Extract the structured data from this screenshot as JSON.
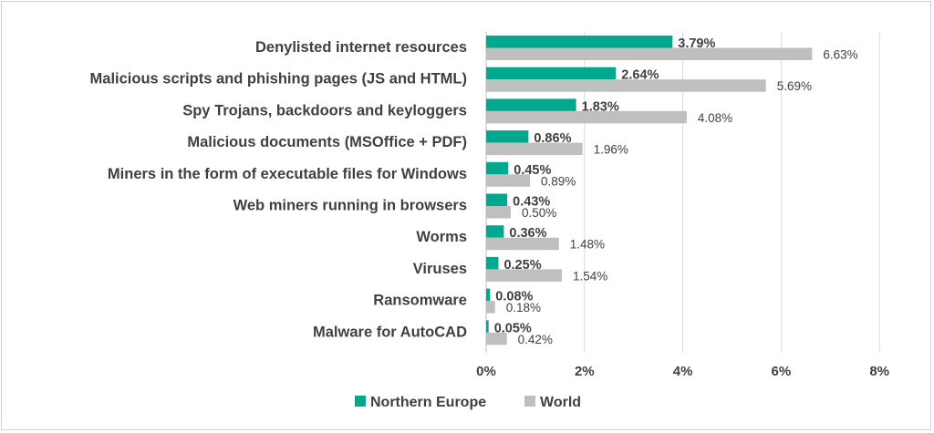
{
  "chart_data": {
    "type": "bar",
    "orientation": "horizontal",
    "categories": [
      "Denylisted internet resources",
      "Malicious scripts and phishing pages (JS and HTML)",
      "Spy Trojans, backdoors and keyloggers",
      "Malicious documents (MSOffice + PDF)",
      "Miners in the form of executable files for Windows",
      "Web miners running in browsers",
      "Worms",
      "Viruses",
      "Ransomware",
      "Malware for AutoCAD"
    ],
    "series": [
      {
        "name": "Northern Europe",
        "color": "#00a88e",
        "values": [
          3.79,
          2.64,
          1.83,
          0.86,
          0.45,
          0.43,
          0.36,
          0.25,
          0.08,
          0.05
        ],
        "labels": [
          "3.79%",
          "2.64%",
          "1.83%",
          "0.86%",
          "0.45%",
          "0.43%",
          "0.36%",
          "0.25%",
          "0.08%",
          "0.05%"
        ]
      },
      {
        "name": "World",
        "color": "#bfbfbf",
        "values": [
          6.63,
          5.69,
          4.08,
          1.96,
          0.89,
          0.5,
          1.48,
          1.54,
          0.18,
          0.42
        ],
        "labels": [
          "6.63%",
          "5.69%",
          "4.08%",
          "1.96%",
          "0.89%",
          "0.50%",
          "1.48%",
          "1.54%",
          "0.18%",
          "0.42%"
        ]
      }
    ],
    "xlim": [
      0,
      8
    ],
    "xticks": [
      "0%",
      "2%",
      "4%",
      "6%",
      "8%"
    ],
    "grid": true,
    "legend_position": "bottom"
  }
}
